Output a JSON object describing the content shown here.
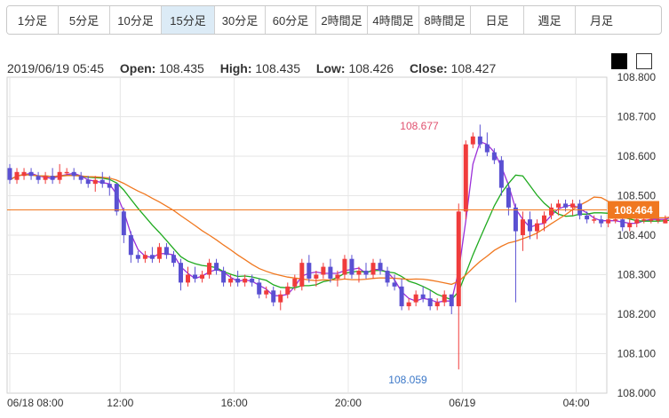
{
  "tabs": [
    {
      "label": "1分足",
      "active": false
    },
    {
      "label": "5分足",
      "active": false
    },
    {
      "label": "10分足",
      "active": false
    },
    {
      "label": "15分足",
      "active": true
    },
    {
      "label": "30分足",
      "active": false
    },
    {
      "label": "60分足",
      "active": false
    },
    {
      "label": "2時間足",
      "active": false
    },
    {
      "label": "4時間足",
      "active": false
    },
    {
      "label": "8時間足",
      "active": false
    },
    {
      "label": "日足",
      "active": false
    },
    {
      "label": "週足",
      "active": false
    },
    {
      "label": "月足",
      "active": false
    }
  ],
  "ohlc": {
    "datetime": "2019/06/19 05:45",
    "open_label": "Open:",
    "open": "108.435",
    "high_label": "High:",
    "high": "108.435",
    "low_label": "Low:",
    "low": "108.426",
    "close_label": "Close:",
    "close": "108.427"
  },
  "theme": {
    "dark": "#000000",
    "light": "#ffffff"
  },
  "chart_data": {
    "type": "candlestick",
    "ylim": [
      108.0,
      108.8
    ],
    "y_ticks": [
      "108.800",
      "108.700",
      "108.600",
      "108.500",
      "108.400",
      "108.300",
      "108.200",
      "108.100",
      "108.000"
    ],
    "x_ticks": [
      {
        "label": "06/18 08:00",
        "index": 0
      },
      {
        "label": "12:00",
        "index": 15.5
      },
      {
        "label": "16:00",
        "index": 31.5
      },
      {
        "label": "20:00",
        "index": 47.5
      },
      {
        "label": "06/19",
        "index": 63.5
      },
      {
        "label": "04:00",
        "index": 79.5
      }
    ],
    "current_price": "108.464",
    "annotations": {
      "high": "108.677",
      "low": "108.059"
    },
    "colors": {
      "up": "#f03c3c",
      "down": "#5a50d2",
      "ma_short": "#9b30d9",
      "ma_mid": "#1faa1f",
      "ma_long": "#f07820",
      "price_line": "#f07820",
      "high_text": "#e0506e",
      "low_text": "#3c78c8",
      "grid": "#e6e6e6"
    },
    "series_ma": [
      "ma_short",
      "ma_mid",
      "ma_long"
    ],
    "candles": [
      [
        108.57,
        108.58,
        108.53,
        108.54
      ],
      [
        108.54,
        108.57,
        108.53,
        108.56
      ],
      [
        108.55,
        108.57,
        108.54,
        108.56
      ],
      [
        108.56,
        108.57,
        108.54,
        108.55
      ],
      [
        108.55,
        108.56,
        108.53,
        108.54
      ],
      [
        108.54,
        108.56,
        108.53,
        108.55
      ],
      [
        108.55,
        108.57,
        108.53,
        108.54
      ],
      [
        108.54,
        108.58,
        108.53,
        108.56
      ],
      [
        108.56,
        108.57,
        108.55,
        108.56
      ],
      [
        108.56,
        108.57,
        108.54,
        108.55
      ],
      [
        108.55,
        108.56,
        108.53,
        108.54
      ],
      [
        108.54,
        108.55,
        108.52,
        108.53
      ],
      [
        108.53,
        108.55,
        108.51,
        108.54
      ],
      [
        108.54,
        108.56,
        108.52,
        108.53
      ],
      [
        108.53,
        108.55,
        108.5,
        108.52
      ],
      [
        108.53,
        108.53,
        108.45,
        108.46
      ],
      [
        108.46,
        108.47,
        108.38,
        108.4
      ],
      [
        108.4,
        108.41,
        108.33,
        108.35
      ],
      [
        108.35,
        108.36,
        108.33,
        108.34
      ],
      [
        108.34,
        108.36,
        108.33,
        108.35
      ],
      [
        108.35,
        108.37,
        108.33,
        108.34
      ],
      [
        108.34,
        108.38,
        108.33,
        108.37
      ],
      [
        108.37,
        108.38,
        108.34,
        108.35
      ],
      [
        108.35,
        108.36,
        108.32,
        108.33
      ],
      [
        108.33,
        108.34,
        108.26,
        108.28
      ],
      [
        108.28,
        108.32,
        108.27,
        108.3
      ],
      [
        108.3,
        108.32,
        108.28,
        108.29
      ],
      [
        108.29,
        108.31,
        108.28,
        108.3
      ],
      [
        108.3,
        108.34,
        108.29,
        108.33
      ],
      [
        108.33,
        108.34,
        108.3,
        108.31
      ],
      [
        108.31,
        108.32,
        108.27,
        108.28
      ],
      [
        108.28,
        108.3,
        108.27,
        108.29
      ],
      [
        108.29,
        108.31,
        108.27,
        108.28
      ],
      [
        108.28,
        108.3,
        108.27,
        108.29
      ],
      [
        108.29,
        108.3,
        108.27,
        108.28
      ],
      [
        108.28,
        108.29,
        108.24,
        108.25
      ],
      [
        108.25,
        108.27,
        108.24,
        108.26
      ],
      [
        108.26,
        108.27,
        108.22,
        108.23
      ],
      [
        108.23,
        108.26,
        108.21,
        108.25
      ],
      [
        108.25,
        108.28,
        108.24,
        108.27
      ],
      [
        108.27,
        108.3,
        108.26,
        108.29
      ],
      [
        108.27,
        108.34,
        108.26,
        108.33
      ],
      [
        108.33,
        108.35,
        108.28,
        108.29
      ],
      [
        108.29,
        108.31,
        108.27,
        108.3
      ],
      [
        108.3,
        108.33,
        108.29,
        108.32
      ],
      [
        108.32,
        108.34,
        108.28,
        108.29
      ],
      [
        108.29,
        108.31,
        108.27,
        108.3
      ],
      [
        108.3,
        108.35,
        108.29,
        108.34
      ],
      [
        108.34,
        108.35,
        108.29,
        108.3
      ],
      [
        108.3,
        108.32,
        108.28,
        108.31
      ],
      [
        108.31,
        108.33,
        108.29,
        108.3
      ],
      [
        108.3,
        108.34,
        108.29,
        108.33
      ],
      [
        108.33,
        108.34,
        108.3,
        108.31
      ],
      [
        108.31,
        108.32,
        108.27,
        108.28
      ],
      [
        108.28,
        108.3,
        108.26,
        108.27
      ],
      [
        108.27,
        108.29,
        108.21,
        108.22
      ],
      [
        108.22,
        108.24,
        108.21,
        108.23
      ],
      [
        108.23,
        108.26,
        108.22,
        108.25
      ],
      [
        108.25,
        108.27,
        108.23,
        108.24
      ],
      [
        108.24,
        108.26,
        108.21,
        108.22
      ],
      [
        108.22,
        108.24,
        108.21,
        108.23
      ],
      [
        108.23,
        108.26,
        108.22,
        108.25
      ],
      [
        108.25,
        108.25,
        108.2,
        108.22
      ],
      [
        108.22,
        108.48,
        108.06,
        108.46
      ],
      [
        108.46,
        108.64,
        108.44,
        108.63
      ],
      [
        108.63,
        108.66,
        108.62,
        108.65
      ],
      [
        108.65,
        108.68,
        108.62,
        108.63
      ],
      [
        108.63,
        108.66,
        108.6,
        108.61
      ],
      [
        108.61,
        108.62,
        108.58,
        108.59
      ],
      [
        108.59,
        108.6,
        108.5,
        108.52
      ],
      [
        108.52,
        108.53,
        108.45,
        108.47
      ],
      [
        108.47,
        108.48,
        108.23,
        108.41
      ],
      [
        108.4,
        108.46,
        108.36,
        108.44
      ],
      [
        108.44,
        108.46,
        108.39,
        108.41
      ],
      [
        108.41,
        108.44,
        108.39,
        108.43
      ],
      [
        108.43,
        108.46,
        108.41,
        108.45
      ],
      [
        108.45,
        108.48,
        108.44,
        108.47
      ],
      [
        108.47,
        108.49,
        108.45,
        108.48
      ],
      [
        108.48,
        108.49,
        108.46,
        108.47
      ],
      [
        108.47,
        108.49,
        108.45,
        108.48
      ],
      [
        108.48,
        108.49,
        108.44,
        108.45
      ],
      [
        108.45,
        108.46,
        108.43,
        108.44
      ],
      [
        108.44,
        108.45,
        108.43,
        108.44
      ],
      [
        108.44,
        108.45,
        108.42,
        108.43
      ],
      [
        108.43,
        108.45,
        108.42,
        108.44
      ],
      [
        108.44,
        108.45,
        108.43,
        108.44
      ],
      [
        108.44,
        108.45,
        108.41,
        108.42
      ],
      [
        108.42,
        108.44,
        108.41,
        108.43
      ],
      [
        108.43,
        108.45,
        108.42,
        108.44
      ],
      [
        108.44,
        108.45,
        108.43,
        108.44
      ],
      [
        108.44,
        108.46,
        108.43,
        108.44
      ],
      [
        108.44,
        108.45,
        108.43,
        108.44
      ],
      [
        108.43,
        108.45,
        108.43,
        108.44
      ],
      [
        108.44,
        108.48,
        108.44,
        108.46
      ],
      [
        108.46,
        108.47,
        108.45,
        108.46
      ]
    ]
  }
}
